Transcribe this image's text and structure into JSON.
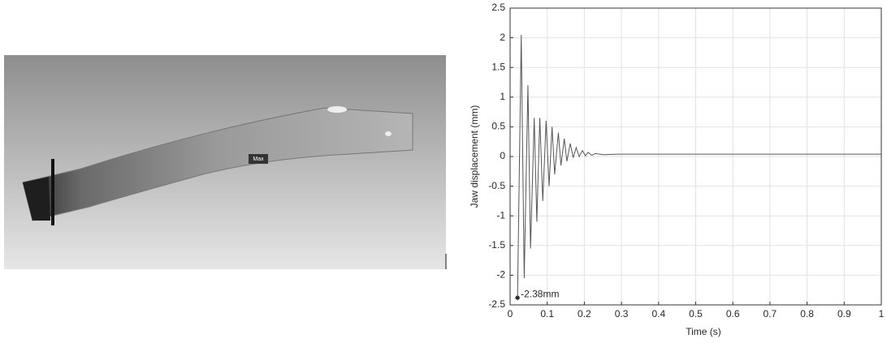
{
  "figure": {
    "label": "Max"
  },
  "chart_data": {
    "type": "line",
    "xlabel": "Time (s)",
    "ylabel": "Jaw displacement (mm)",
    "x": [
      0.02,
      0.03,
      0.038,
      0.048,
      0.055,
      0.065,
      0.072,
      0.08,
      0.088,
      0.097,
      0.105,
      0.113,
      0.12,
      0.13,
      0.137,
      0.146,
      0.153,
      0.162,
      0.17,
      0.178,
      0.186,
      0.195,
      0.203,
      0.21,
      0.22,
      0.23,
      0.25,
      0.3,
      1.0
    ],
    "values": [
      -2.38,
      2.05,
      -2.05,
      1.2,
      -1.55,
      0.65,
      -1.1,
      0.65,
      -0.75,
      0.6,
      -0.5,
      0.5,
      -0.3,
      0.4,
      -0.15,
      0.3,
      -0.08,
      0.22,
      -0.02,
      0.15,
      0.0,
      0.1,
      0.01,
      0.07,
      0.02,
      0.05,
      0.03,
      0.04,
      0.04
    ],
    "color": "#555555",
    "xlim": [
      0,
      1
    ],
    "xticks": [
      0,
      0.1,
      0.2,
      0.3,
      0.4,
      0.5,
      0.6,
      0.7,
      0.8,
      0.9,
      1
    ],
    "ylim": [
      -2.5,
      2.5
    ],
    "yticks": [
      -2.5,
      -2,
      -1.5,
      -1,
      -0.5,
      0,
      0.5,
      1,
      1.5,
      2,
      2.5
    ],
    "grid": true,
    "annotation": {
      "text": "-2.38mm",
      "x": 0.02,
      "y": -2.38
    }
  }
}
